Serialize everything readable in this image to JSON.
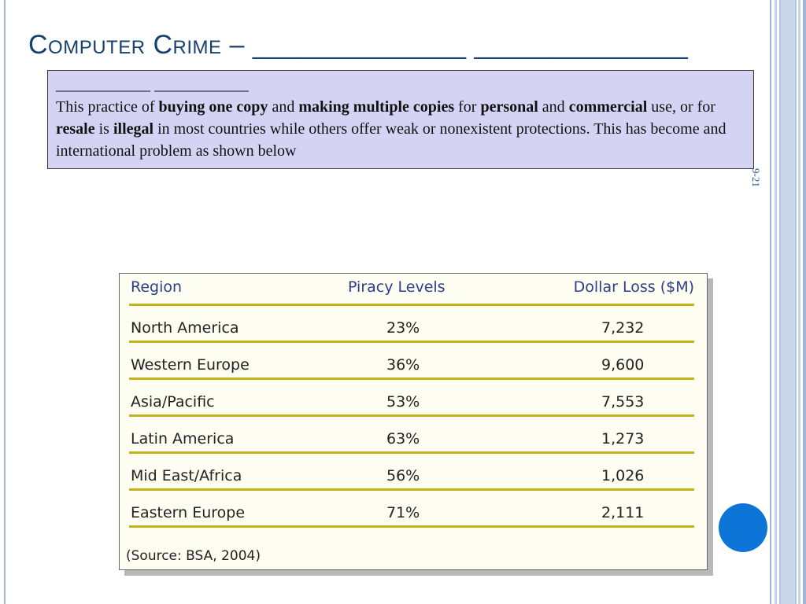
{
  "slide": {
    "title": "Computer Crime – ______________ ______________",
    "number": "9-21"
  },
  "text_box": {
    "line1": "____________ ____________",
    "paragraph": [
      {
        "text": "This practice of ",
        "bold": false
      },
      {
        "text": "buying one copy",
        "bold": true
      },
      {
        "text": " and ",
        "bold": false
      },
      {
        "text": "making multiple copies",
        "bold": true
      },
      {
        "text": " for ",
        "bold": false
      },
      {
        "text": "personal",
        "bold": true
      },
      {
        "text": " and ",
        "bold": false
      },
      {
        "text": "commercial",
        "bold": true
      },
      {
        "text": " use, or for ",
        "bold": false
      },
      {
        "text": "resale",
        "bold": true
      },
      {
        "text": " is ",
        "bold": false
      },
      {
        "text": "illegal",
        "bold": true
      },
      {
        "text": " in most countries while others offer weak or nonexistent protections. This has become and international problem as shown below",
        "bold": false
      }
    ]
  },
  "table": {
    "headers": {
      "region": "Region",
      "piracy": "Piracy Levels",
      "loss": "Dollar Loss ($M)"
    },
    "rows": [
      {
        "region": "North America",
        "piracy": "23%",
        "loss": "7,232"
      },
      {
        "region": "Western Europe",
        "piracy": "36%",
        "loss": "9,600"
      },
      {
        "region": "Asia/Pacific",
        "piracy": "53%",
        "loss": "7,553"
      },
      {
        "region": "Latin America",
        "piracy": "63%",
        "loss": "1,273"
      },
      {
        "region": "Mid East/Africa",
        "piracy": "56%",
        "loss": "1,026"
      },
      {
        "region": "Eastern Europe",
        "piracy": "71%",
        "loss": "2,111"
      }
    ],
    "source": "(Source: BSA, 2004)"
  },
  "colors": {
    "title": "#17406d",
    "header_text": "#2c3e8c",
    "row_rule": "#c3b41c",
    "text_box_bg": "#d5d3f3",
    "circle": "#0d74d8"
  }
}
